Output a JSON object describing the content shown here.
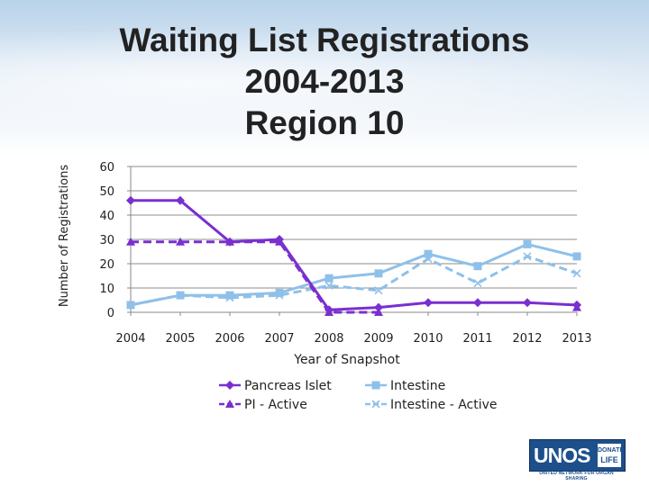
{
  "chart_data": {
    "type": "line",
    "title_lines": [
      "Waiting List Registrations",
      "2004-2013",
      "Region 10"
    ],
    "xlabel": "Year of Snapshot",
    "ylabel": "Number of Registrations",
    "categories": [
      "2004",
      "2005",
      "2006",
      "2007",
      "2008",
      "2009",
      "2010",
      "2011",
      "2012",
      "2013"
    ],
    "ylim": [
      0,
      60
    ],
    "yticks": [
      "0",
      "10",
      "20",
      "30",
      "40",
      "50",
      "60"
    ],
    "grid": true,
    "series": [
      {
        "name": "Pancreas Islet",
        "values": [
          46,
          46,
          29,
          30,
          1,
          2,
          4,
          4,
          4,
          3
        ],
        "color": "#7a2fd0",
        "dash": false,
        "marker": "diamond"
      },
      {
        "name": "Intestine",
        "values": [
          3,
          7,
          7,
          8,
          14,
          16,
          24,
          19,
          28,
          23
        ],
        "color": "#8fc0ea",
        "dash": false,
        "marker": "square"
      },
      {
        "name": "PI - Active",
        "values": [
          29,
          29,
          29,
          29,
          0,
          0,
          null,
          null,
          null,
          2
        ],
        "color": "#7a2fd0",
        "dash": true,
        "marker": "triangle"
      },
      {
        "name": "Intestine - Active",
        "values": [
          3,
          7,
          6,
          7,
          11,
          9,
          22,
          12,
          23,
          16
        ],
        "color": "#8fc0ea",
        "dash": true,
        "marker": "x"
      }
    ],
    "legend_order": [
      "Pancreas Islet",
      "Intestine",
      "PI - Active",
      "Intestine - Active"
    ]
  },
  "logo": {
    "word": "UNOS",
    "badge_line1": "DONATE",
    "badge_line2": "LIFE",
    "tagline": "UNITED NETWORK FOR ORGAN SHARING"
  }
}
